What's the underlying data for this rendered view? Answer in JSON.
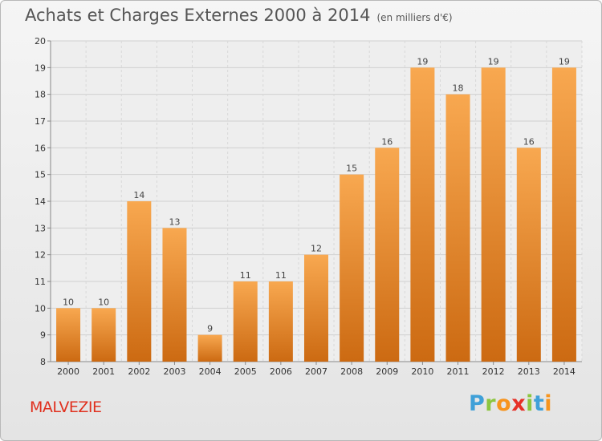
{
  "header": {
    "title": "Achats et Charges Externes 2000 à 2014",
    "unit": "(en milliers d'€)"
  },
  "footer": {
    "commune": "MALVEZIE",
    "logo_letters": [
      "P",
      "r",
      "o",
      "x",
      "i",
      "t",
      "i"
    ],
    "logo_colors": [
      "#3fa0d8",
      "#8cc63f",
      "#f7941d",
      "#e63027",
      "#8cc63f",
      "#3fa0d8",
      "#f7941d"
    ]
  },
  "chart_data": {
    "type": "bar",
    "categories": [
      "2000",
      "2001",
      "2002",
      "2003",
      "2004",
      "2005",
      "2006",
      "2007",
      "2008",
      "2009",
      "2010",
      "2011",
      "2012",
      "2013",
      "2014"
    ],
    "values": [
      10,
      10,
      14,
      13,
      9,
      11,
      11,
      12,
      15,
      16,
      19,
      18,
      19,
      16,
      19
    ],
    "title": "Achats et Charges Externes 2000 à 2014",
    "ylim": [
      8,
      20
    ],
    "yticks": [
      8,
      9,
      10,
      11,
      12,
      13,
      14,
      15,
      16,
      17,
      18,
      19,
      20
    ],
    "grid": true,
    "bar_color_light": "#f8a850",
    "bar_color_dark": "#cc6a12"
  }
}
